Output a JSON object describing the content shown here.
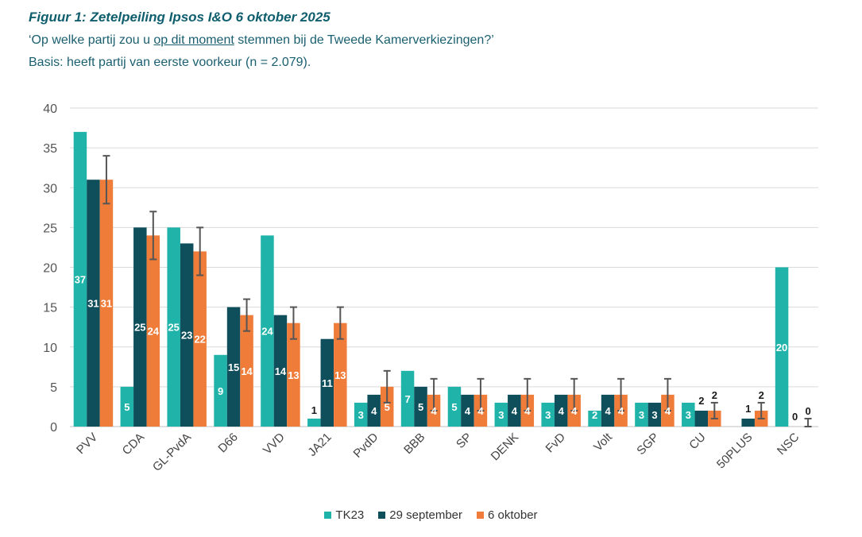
{
  "title": "Figuur 1: Zetelpeiling Ipsos I&O 6 oktober 2025",
  "subtitle_pre": "‘Op welke partij zou u ",
  "subtitle_underlined": "op dit moment",
  "subtitle_post": " stemmen bij de Tweede Kamerverkiezingen?’",
  "basis": "Basis: heeft partij van eerste voorkeur (n = 2.079).",
  "chart_data": {
    "type": "bar",
    "categories": [
      "PVV",
      "CDA",
      "GL-PvdA",
      "D66",
      "VVD",
      "JA21",
      "PvdD",
      "BBB",
      "SP",
      "DENK",
      "FvD",
      "Volt",
      "SGP",
      "CU",
      "50PLUS",
      "NSC"
    ],
    "ylim": [
      0,
      40
    ],
    "yticks": [
      0,
      5,
      10,
      15,
      20,
      25,
      30,
      35,
      40
    ],
    "grid": true,
    "legend_position": "bottom",
    "series": [
      {
        "name": "TK23",
        "color": "#1fb3aa",
        "values": [
          37,
          5,
          25,
          9,
          24,
          1,
          3,
          7,
          5,
          3,
          3,
          2,
          3,
          3,
          0,
          20
        ]
      },
      {
        "name": "29 september",
        "color": "#0f4f5c",
        "values": [
          31,
          25,
          23,
          15,
          14,
          11,
          4,
          5,
          4,
          4,
          4,
          4,
          3,
          2,
          1,
          0
        ]
      },
      {
        "name": "6 oktober",
        "color": "#f07c3a",
        "values": [
          31,
          24,
          22,
          14,
          13,
          13,
          5,
          4,
          4,
          4,
          4,
          4,
          4,
          2,
          2,
          0
        ],
        "error_low": [
          28,
          21,
          19,
          12,
          11,
          11,
          3,
          2,
          2,
          2,
          2,
          2,
          2,
          1,
          1,
          0
        ],
        "error_high": [
          34,
          27,
          25,
          16,
          15,
          15,
          7,
          6,
          6,
          6,
          6,
          6,
          6,
          3,
          3,
          1
        ]
      }
    ]
  }
}
